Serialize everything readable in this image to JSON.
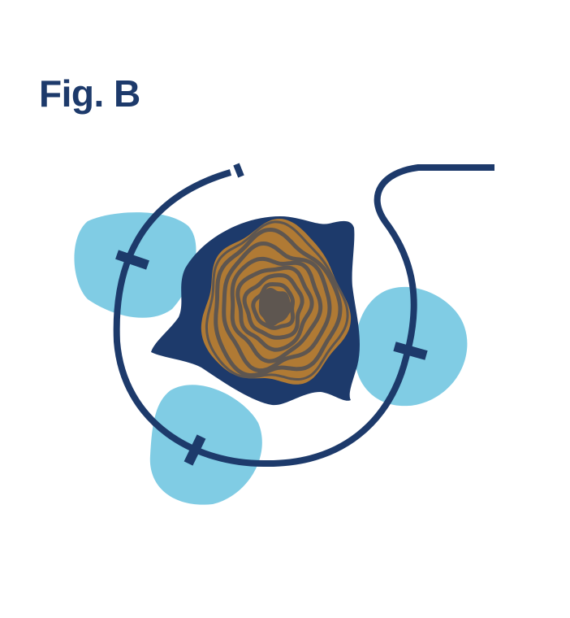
{
  "figure": {
    "title": "Fig. B"
  },
  "colors": {
    "navy": "#1d3a6b",
    "light_blue": "#80cce4",
    "ring_brown": "#b07a34",
    "core_gray": "#5e5650",
    "background": "#ffffff"
  },
  "parts": {
    "blobs": [
      "light-blue-blob",
      "light-blue-blob",
      "light-blue-blob"
    ],
    "central_shape": "navy-star-base",
    "rings": "concentric-wood-rings",
    "tube": "navy-tube-loop",
    "clips": [
      "clip",
      "clip",
      "clip"
    ]
  }
}
